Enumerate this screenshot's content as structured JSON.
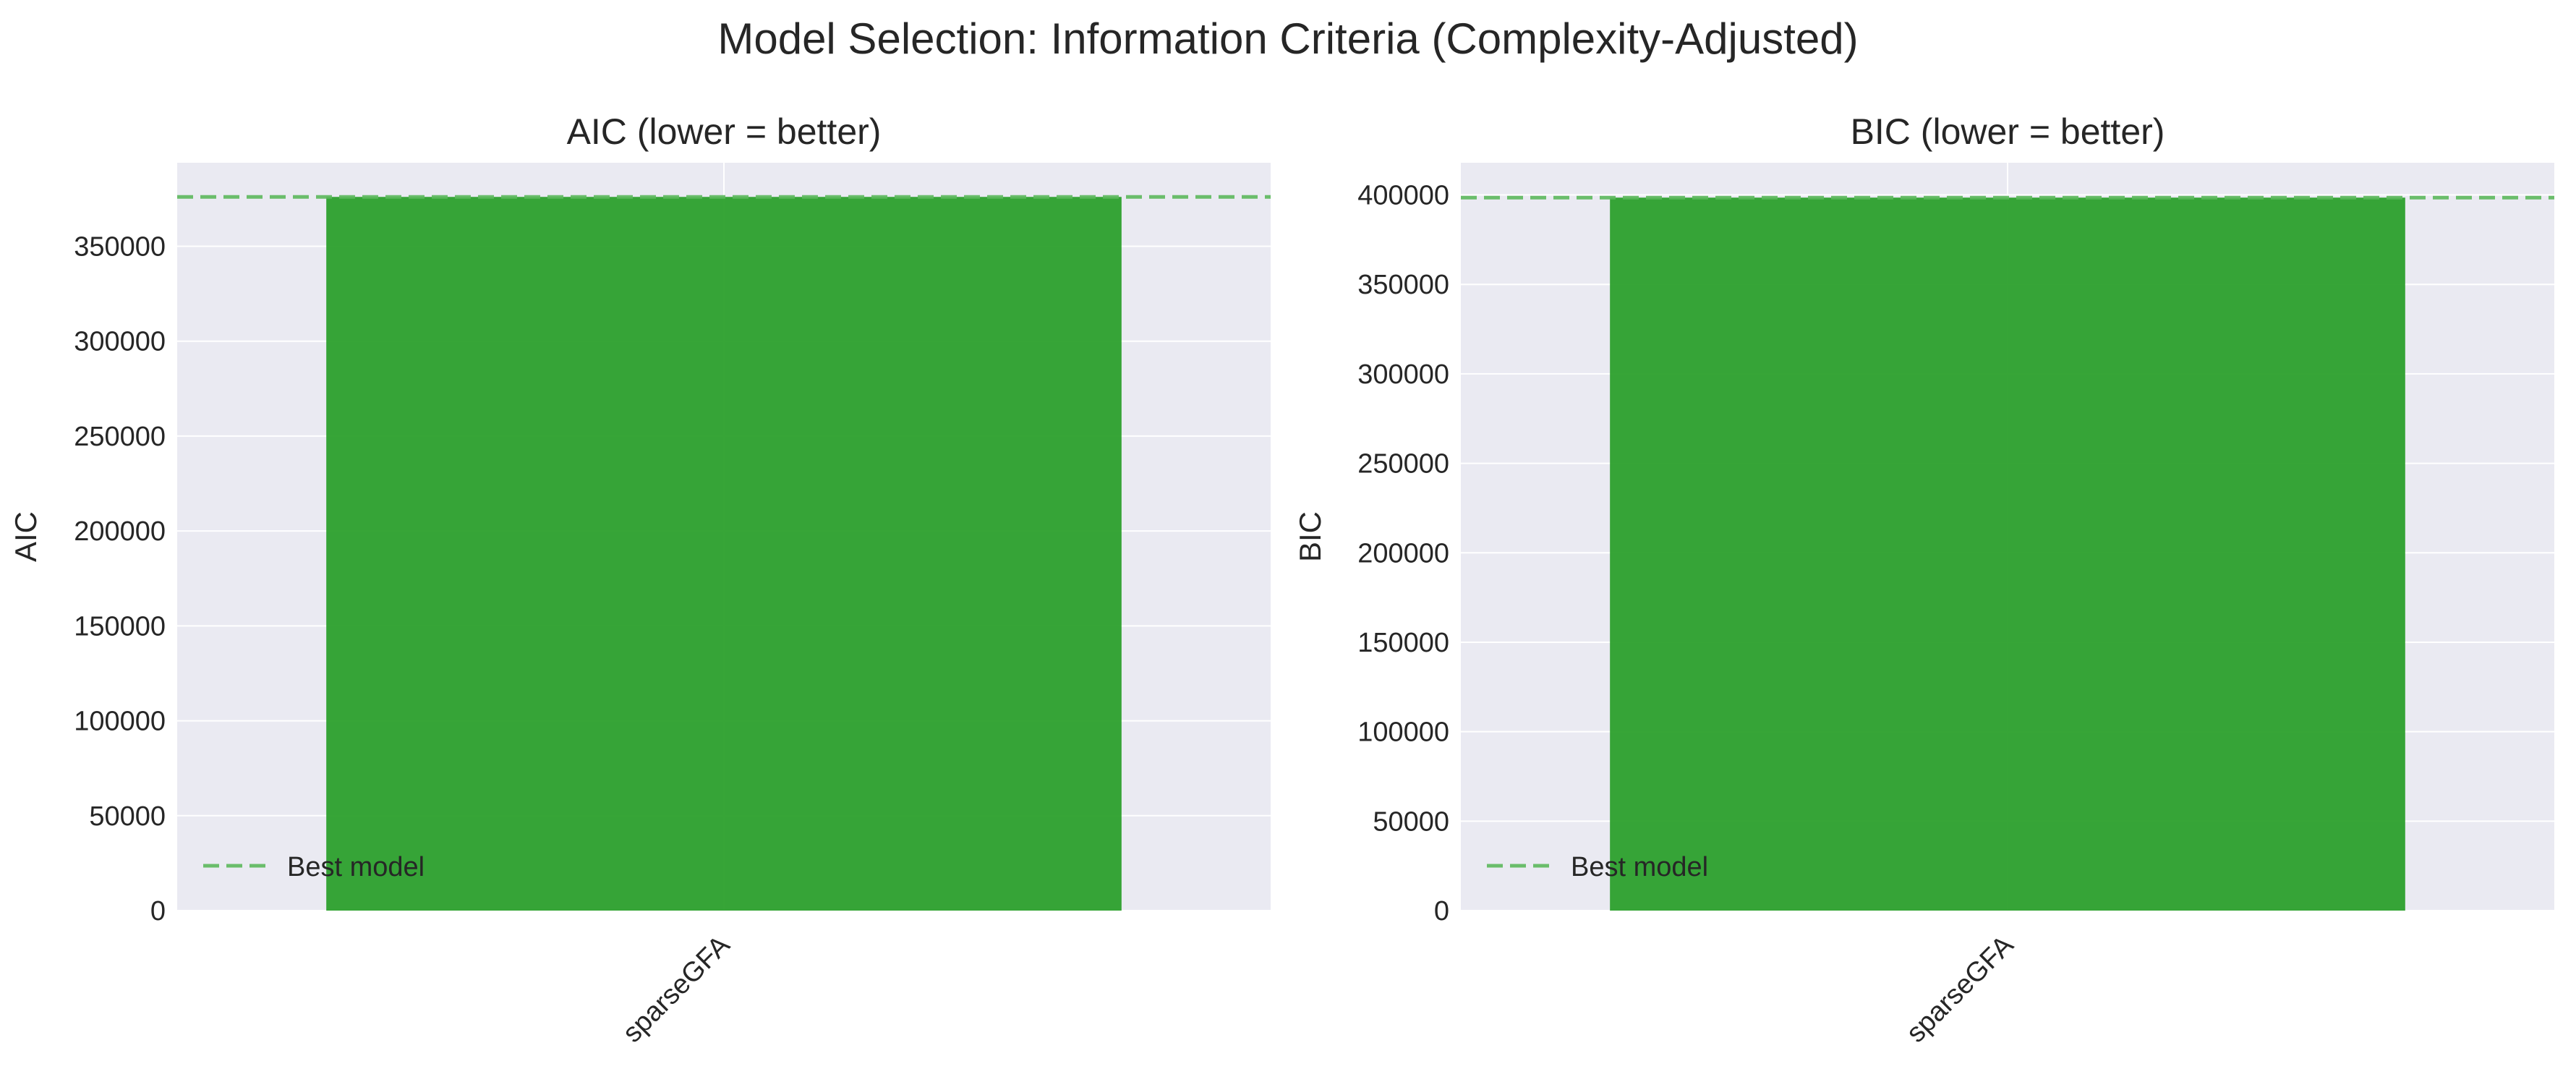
{
  "title": "Model Selection: Information Criteria (Complexity-Adjusted)",
  "colors": {
    "panel_bg": "#eaeaf2",
    "grid": "#ffffff",
    "bar": "#2ca02c",
    "bar_opacity": 0.95,
    "best_line": "#5cb85c"
  },
  "chart_data": [
    {
      "type": "bar",
      "title": "AIC (lower = better)",
      "xlabel": "",
      "ylabel": "AIC",
      "categories": [
        "sparseGFA"
      ],
      "values": [
        376000
      ],
      "ylim": [
        0,
        394000
      ],
      "yticks": [
        0,
        50000,
        100000,
        150000,
        200000,
        250000,
        300000,
        350000
      ],
      "ytick_labels": [
        "0",
        "50000",
        "100000",
        "150000",
        "200000",
        "250000",
        "300000",
        "350000"
      ],
      "best_line_value": 376000,
      "legend": {
        "entries": [
          "Best model"
        ],
        "location": "lower-left"
      },
      "grid": true
    },
    {
      "type": "bar",
      "title": "BIC (lower = better)",
      "xlabel": "",
      "ylabel": "BIC",
      "categories": [
        "sparseGFA"
      ],
      "values": [
        398500
      ],
      "ylim": [
        0,
        418000
      ],
      "yticks": [
        0,
        50000,
        100000,
        150000,
        200000,
        250000,
        300000,
        350000,
        400000
      ],
      "ytick_labels": [
        "0",
        "50000",
        "100000",
        "150000",
        "200000",
        "250000",
        "300000",
        "350000",
        "400000"
      ],
      "best_line_value": 398500,
      "legend": {
        "entries": [
          "Best model"
        ],
        "location": "lower-left"
      },
      "grid": true
    }
  ]
}
